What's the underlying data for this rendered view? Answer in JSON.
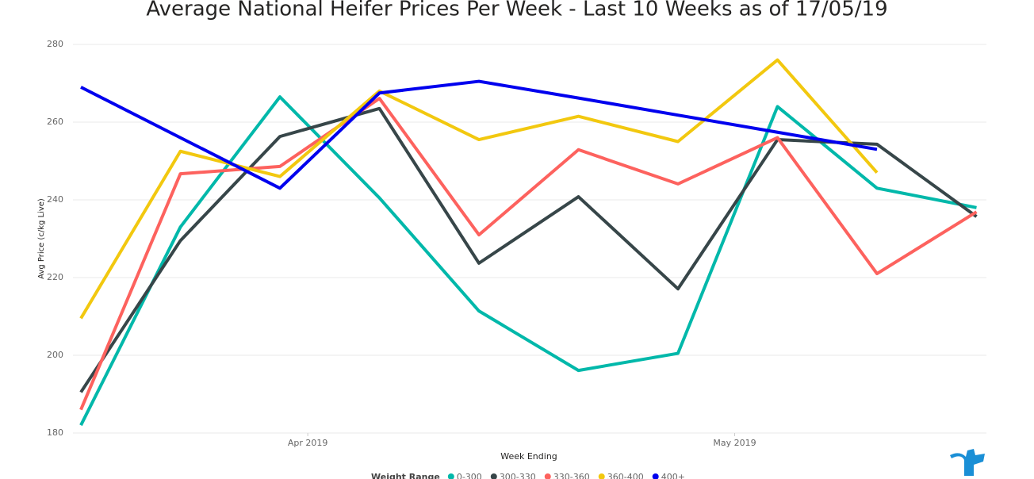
{
  "chart_data": {
    "type": "line",
    "title": "Average National Heifer Prices Per Week - Last 10 Weeks as of 17/05/19",
    "x_label": "Week Ending",
    "y_label": "Avg Price (c/kg Live)",
    "legend_title": "Weight Range",
    "categories": [
      null,
      null,
      null,
      null,
      null,
      null,
      null,
      null,
      null,
      null
    ],
    "xticks": [
      {
        "value": 2.28,
        "label": "Apr 2019"
      },
      {
        "value": 6.57,
        "label": "May 2019"
      }
    ],
    "ylim": [
      180,
      280
    ],
    "yticks": [
      180,
      200,
      220,
      240,
      260,
      280
    ],
    "grid": true,
    "series": [
      {
        "name": "0-300",
        "color": "#01b8aa",
        "values": [
          182,
          233,
          266.5,
          240.5,
          211.4,
          196.1,
          200.5,
          264,
          243,
          238
        ]
      },
      {
        "name": "300-330",
        "color": "#374649",
        "values": [
          190.5,
          229.5,
          256.3,
          263.5,
          223.7,
          240.8,
          217.1,
          255.5,
          254.3,
          235.7
        ]
      },
      {
        "name": "330-360",
        "color": "#fd625e",
        "values": [
          186,
          246.7,
          248.6,
          266.1,
          231,
          252.9,
          244.1,
          256,
          221,
          236.9
        ]
      },
      {
        "name": "360-400",
        "color": "#f2c80f",
        "values": [
          209.5,
          252.5,
          246,
          268,
          255.5,
          261.5,
          255,
          276,
          247,
          null
        ]
      },
      {
        "name": "400+",
        "color": "#0000ee",
        "values": [
          269,
          256,
          243,
          267.5,
          270.5,
          266.2,
          261.8,
          257.4,
          253,
          null
        ]
      }
    ]
  }
}
